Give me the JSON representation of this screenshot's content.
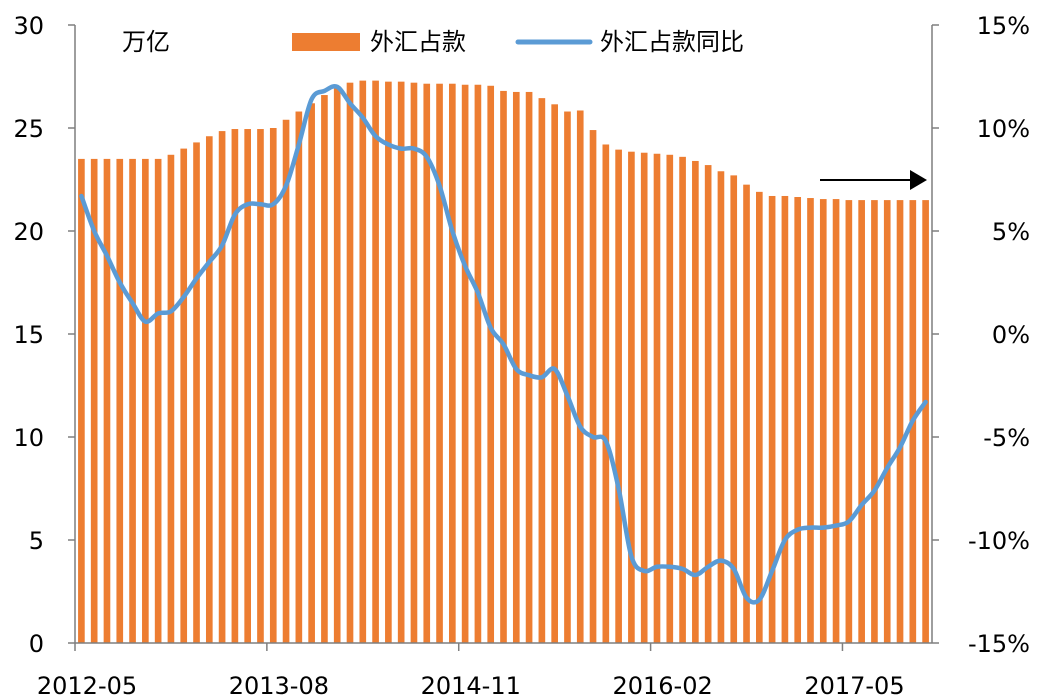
{
  "chart_data": {
    "type": "bar+line",
    "unit_label_left": "万亿",
    "x_tick_labels": [
      "2012-05",
      "2013-08",
      "2014-11",
      "2016-02",
      "2017-05"
    ],
    "x": [
      "2012-05",
      "2012-06",
      "2012-07",
      "2012-08",
      "2012-09",
      "2012-10",
      "2012-11",
      "2012-12",
      "2013-01",
      "2013-02",
      "2013-03",
      "2013-04",
      "2013-05",
      "2013-06",
      "2013-07",
      "2013-08",
      "2013-09",
      "2013-10",
      "2013-11",
      "2013-12",
      "2014-01",
      "2014-02",
      "2014-03",
      "2014-04",
      "2014-05",
      "2014-06",
      "2014-07",
      "2014-08",
      "2014-09",
      "2014-10",
      "2014-11",
      "2014-12",
      "2015-01",
      "2015-02",
      "2015-03",
      "2015-04",
      "2015-05",
      "2015-06",
      "2015-07",
      "2015-08",
      "2015-09",
      "2015-10",
      "2015-11",
      "2015-12",
      "2016-01",
      "2016-02",
      "2016-03",
      "2016-04",
      "2016-05",
      "2016-06",
      "2016-07",
      "2016-08",
      "2016-09",
      "2016-10",
      "2016-11",
      "2016-12",
      "2017-01",
      "2017-02",
      "2017-03",
      "2017-04",
      "2017-05",
      "2017-06",
      "2017-07",
      "2017-08",
      "2017-09",
      "2017-10",
      "2017-11"
    ],
    "series": [
      {
        "name": "外汇占款",
        "kind": "bar",
        "axis": "left",
        "color": "#ED7D31",
        "values": [
          23.5,
          23.5,
          23.5,
          23.5,
          23.5,
          23.5,
          23.5,
          23.7,
          24.0,
          24.3,
          24.6,
          24.85,
          24.95,
          24.95,
          24.95,
          25.0,
          25.4,
          25.8,
          26.2,
          26.6,
          27.0,
          27.2,
          27.3,
          27.3,
          27.25,
          27.25,
          27.2,
          27.15,
          27.15,
          27.15,
          27.1,
          27.1,
          27.05,
          26.8,
          26.75,
          26.75,
          26.45,
          26.15,
          25.8,
          25.85,
          24.9,
          24.2,
          23.95,
          23.85,
          23.8,
          23.75,
          23.7,
          23.6,
          23.4,
          23.2,
          22.9,
          22.7,
          22.25,
          21.9,
          21.7,
          21.7,
          21.65,
          21.6,
          21.55,
          21.55,
          21.5,
          21.5,
          21.5,
          21.5,
          21.5,
          21.5,
          21.5
        ]
      },
      {
        "name": "外汇占款同比",
        "kind": "line",
        "axis": "right",
        "color": "#5B9BD5",
        "values": [
          6.7,
          5.0,
          3.8,
          2.5,
          1.5,
          0.6,
          1.0,
          1.1,
          1.8,
          2.7,
          3.5,
          4.3,
          5.8,
          6.3,
          6.3,
          6.3,
          7.2,
          9.2,
          11.4,
          11.8,
          12.0,
          11.2,
          10.5,
          9.6,
          9.2,
          9.0,
          9.0,
          8.6,
          7.2,
          5.0,
          3.3,
          2.0,
          0.3,
          -0.5,
          -1.7,
          -2.0,
          -2.1,
          -1.7,
          -3.0,
          -4.5,
          -5.0,
          -5.2,
          -7.5,
          -10.8,
          -11.5,
          -11.3,
          -11.3,
          -11.4,
          -11.7,
          -11.3,
          -11.0,
          -11.4,
          -12.8,
          -12.9,
          -11.5,
          -10.0,
          -9.5,
          -9.4,
          -9.4,
          -9.3,
          -9.1,
          -8.3,
          -7.6,
          -6.5,
          -5.5,
          -4.2,
          -3.3
        ]
      }
    ],
    "y_left": {
      "min": 0,
      "max": 30,
      "ticks": [
        0,
        5,
        10,
        15,
        20,
        25,
        30
      ]
    },
    "y_right": {
      "min": -15,
      "max": 15,
      "ticks": [
        "-15%",
        "-10%",
        "-5%",
        "0%",
        "5%",
        "10%",
        "15%"
      ]
    },
    "legend_position": "top-center",
    "grid": false,
    "annotation": {
      "type": "arrow",
      "direction": "right",
      "color": "#000000"
    }
  }
}
